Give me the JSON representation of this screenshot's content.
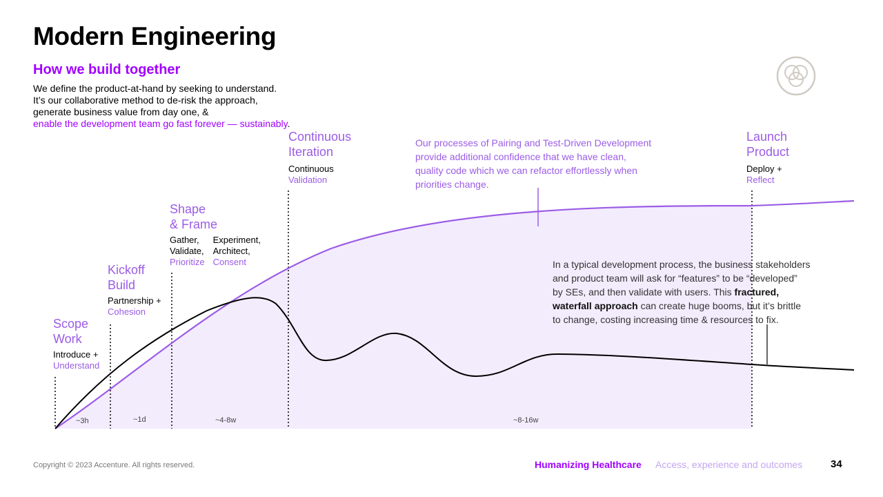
{
  "title": "Modern Engineering",
  "subtitle": "How we build together",
  "intro": {
    "line1": "We define the product-at-hand by seeking to understand.",
    "line2": "It’s our collaborative method to de-risk the approach,",
    "line3": "generate business value from day one, &",
    "line4_highlight": "enable the development team go fast forever — sustainably",
    "line4_end": "."
  },
  "stages": {
    "scope": {
      "title1": "Scope",
      "title2": "Work",
      "desc1": "Introduce +",
      "desc2": "Understand"
    },
    "kickoff": {
      "title1": "Kickoff",
      "title2": "Build",
      "desc1": "Partnership +",
      "desc2": "Cohesion"
    },
    "shape": {
      "title1": "Shape",
      "title2": "& Frame",
      "colA1": "Gather,",
      "colA2": "Validate,",
      "colA3": "Prioritize",
      "colB1": "Experiment,",
      "colB2": "Architect,",
      "colB3": "Consent"
    },
    "iteration": {
      "title1": "Continuous",
      "title2": "Iteration",
      "desc1": "Continuous",
      "desc2": "Validation"
    },
    "launch": {
      "title1": "Launch",
      "title2": "Product",
      "desc1": "Deploy +",
      "desc2": "Reflect"
    }
  },
  "quote": {
    "line1": "Our processes of Pairing and Test-Driven Development",
    "line2": "provide additional confidence that we have clean,",
    "line3": "quality code which we can refactor effortlessly when",
    "line4": "priorities change."
  },
  "paragraph": {
    "line1": "In a typical development process, the business stakeholders",
    "line2": "and product team will ask for “features” to be “developed”",
    "line3_a": "by SEs, and then validate with users. This ",
    "line3_b": "fractured,",
    "line4_a": "waterfall approach",
    "line4_b": " can create huge booms, but it’s brittle",
    "line5": "to change, costing increasing time & resources to fix."
  },
  "durations": [
    "~3h",
    "~1d",
    "~4-8w",
    "~8-16w"
  ],
  "footer": {
    "copyright": "Copyright © 2023 Accenture. All rights reserved.",
    "brand": "Humanizing Healthcare",
    "tagline": "Access, experience and outcomes",
    "page": "34"
  },
  "colors": {
    "accent": "#a100ff",
    "curve_purple": "#9b5ce6",
    "area_fill": "#f3ecfd",
    "curve_black": "#000000"
  },
  "icons": {
    "logo": "interlocking-circles-icon"
  }
}
